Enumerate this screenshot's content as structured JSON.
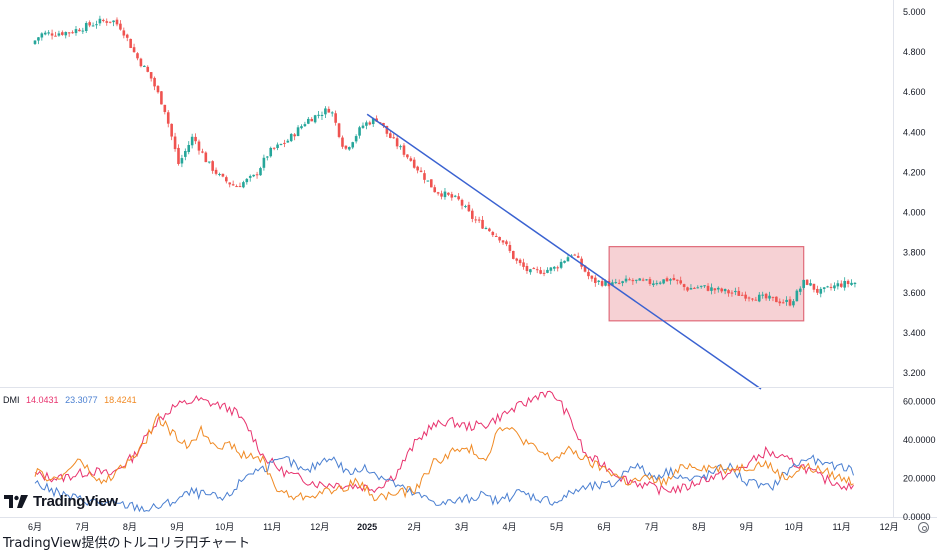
{
  "chart_data": {
    "type": "candlestick",
    "title": "",
    "x_labels": [
      "6月",
      "7月",
      "8月",
      "9月",
      "10月",
      "11月",
      "12月",
      "2025",
      "2月",
      "3月",
      "4月",
      "5月",
      "6月",
      "7月",
      "8月",
      "9月",
      "10月",
      "11月",
      "12月"
    ],
    "y_ticks": [
      "5.000",
      "4.800",
      "4.600",
      "4.400",
      "4.200",
      "4.000",
      "3.800",
      "3.600",
      "3.400",
      "3.200"
    ],
    "ylim": [
      3.13,
      5.06
    ],
    "price_waypoints": [
      [
        0.0,
        4.84
      ],
      [
        0.2,
        4.89
      ],
      [
        0.8,
        4.9
      ],
      [
        1.4,
        4.95
      ],
      [
        1.7,
        4.96
      ],
      [
        1.9,
        4.92
      ],
      [
        2.2,
        4.78
      ],
      [
        2.5,
        4.68
      ],
      [
        2.8,
        4.52
      ],
      [
        3.1,
        4.24
      ],
      [
        3.4,
        4.38
      ],
      [
        3.7,
        4.25
      ],
      [
        4.0,
        4.17
      ],
      [
        4.3,
        4.13
      ],
      [
        4.7,
        4.18
      ],
      [
        5.0,
        4.3
      ],
      [
        5.4,
        4.36
      ],
      [
        5.8,
        4.46
      ],
      [
        6.3,
        4.52
      ],
      [
        6.6,
        4.31
      ],
      [
        7.0,
        4.44
      ],
      [
        7.3,
        4.47
      ],
      [
        7.5,
        4.39
      ],
      [
        8.0,
        4.26
      ],
      [
        8.5,
        4.11
      ],
      [
        9.0,
        4.06
      ],
      [
        9.3,
        3.97
      ],
      [
        9.6,
        3.92
      ],
      [
        9.9,
        3.87
      ],
      [
        10.2,
        3.76
      ],
      [
        10.5,
        3.7
      ],
      [
        11.0,
        3.72
      ],
      [
        11.4,
        3.8
      ],
      [
        11.8,
        3.66
      ],
      [
        12.3,
        3.64
      ],
      [
        12.6,
        3.66
      ],
      [
        13.0,
        3.65
      ],
      [
        13.5,
        3.67
      ],
      [
        13.8,
        3.62
      ],
      [
        14.1,
        3.63
      ],
      [
        14.5,
        3.61
      ],
      [
        15.0,
        3.59
      ],
      [
        15.5,
        3.57
      ],
      [
        16.0,
        3.55
      ],
      [
        16.3,
        3.66
      ],
      [
        16.6,
        3.6
      ],
      [
        17.0,
        3.64
      ],
      [
        17.3,
        3.65
      ]
    ],
    "trendline": {
      "from": [
        7.0,
        4.49
      ],
      "to": [
        15.3,
        3.12
      ],
      "color": "#3a62d1"
    },
    "highlight_box": {
      "x_range": [
        12.1,
        16.2
      ],
      "y_range": [
        3.46,
        3.83
      ],
      "fill": "#f3c1c6",
      "stroke": "#e06b7a"
    },
    "candle_colors": {
      "up": "#26a69a",
      "down": "#ef5350"
    },
    "indicator": {
      "name": "DMI",
      "values": [
        {
          "label": "14.0431",
          "color": "#e8336e"
        },
        {
          "label": "23.3077",
          "color": "#4a7fd1"
        },
        {
          "label": "18.4241",
          "color": "#f08a24"
        }
      ],
      "y_ticks": [
        "60.0000",
        "40.0000",
        "20.0000",
        "0.0000"
      ],
      "ylim": [
        0,
        66
      ],
      "series": [
        {
          "name": "14.0431",
          "color": "#e8336e",
          "waypoints": [
            [
              0,
              22
            ],
            [
              0.5,
              20
            ],
            [
              1.2,
              24
            ],
            [
              1.6,
              22
            ],
            [
              2.1,
              32
            ],
            [
              2.5,
              48
            ],
            [
              2.9,
              57
            ],
            [
              3.4,
              61
            ],
            [
              3.9,
              58
            ],
            [
              4.2,
              55
            ],
            [
              4.5,
              46
            ],
            [
              4.8,
              32
            ],
            [
              5.2,
              24
            ],
            [
              5.6,
              20
            ],
            [
              6.0,
              17
            ],
            [
              6.4,
              17
            ],
            [
              6.8,
              16
            ],
            [
              7.2,
              15
            ],
            [
              7.6,
              22
            ],
            [
              8.0,
              38
            ],
            [
              8.3,
              46
            ],
            [
              8.7,
              50
            ],
            [
              9.1,
              47
            ],
            [
              9.5,
              48
            ],
            [
              10.0,
              55
            ],
            [
              10.4,
              60
            ],
            [
              10.7,
              65
            ],
            [
              11.0,
              62
            ],
            [
              11.3,
              50
            ],
            [
              11.6,
              32
            ],
            [
              12.0,
              27
            ],
            [
              12.4,
              20
            ],
            [
              12.8,
              17
            ],
            [
              13.2,
              14
            ],
            [
              13.7,
              15
            ],
            [
              14.1,
              20
            ],
            [
              14.6,
              22
            ],
            [
              15.0,
              27
            ],
            [
              15.4,
              34
            ],
            [
              15.8,
              30
            ],
            [
              16.2,
              26
            ],
            [
              16.6,
              20
            ],
            [
              17.0,
              17
            ],
            [
              17.3,
              14
            ]
          ]
        },
        {
          "name": "23.3077",
          "color": "#4a7fd1",
          "waypoints": [
            [
              0,
              18
            ],
            [
              0.5,
              12
            ],
            [
              1.0,
              9
            ],
            [
              1.5,
              7
            ],
            [
              2.0,
              6
            ],
            [
              2.4,
              4
            ],
            [
              2.8,
              7
            ],
            [
              3.3,
              13
            ],
            [
              3.7,
              11
            ],
            [
              4.0,
              9
            ],
            [
              4.5,
              23
            ],
            [
              4.9,
              26
            ],
            [
              5.3,
              30
            ],
            [
              5.7,
              23
            ],
            [
              6.2,
              32
            ],
            [
              6.6,
              23
            ],
            [
              7.0,
              25
            ],
            [
              7.4,
              20
            ],
            [
              7.8,
              14
            ],
            [
              8.2,
              10
            ],
            [
              8.6,
              7
            ],
            [
              9.0,
              9
            ],
            [
              9.4,
              11
            ],
            [
              9.8,
              8
            ],
            [
              10.2,
              13
            ],
            [
              10.6,
              10
            ],
            [
              11.0,
              8
            ],
            [
              11.4,
              14
            ],
            [
              11.8,
              16
            ],
            [
              12.2,
              17
            ],
            [
              12.6,
              28
            ],
            [
              13.0,
              21
            ],
            [
              13.4,
              24
            ],
            [
              13.8,
              19
            ],
            [
              14.2,
              22
            ],
            [
              14.6,
              27
            ],
            [
              15.0,
              18
            ],
            [
              15.5,
              15
            ],
            [
              15.9,
              25
            ],
            [
              16.3,
              31
            ],
            [
              16.7,
              26
            ],
            [
              17.0,
              27
            ],
            [
              17.3,
              23
            ]
          ]
        },
        {
          "name": "18.4241",
          "color": "#f08a24",
          "waypoints": [
            [
              0,
              23
            ],
            [
              0.5,
              19
            ],
            [
              0.9,
              30
            ],
            [
              1.4,
              17
            ],
            [
              1.8,
              25
            ],
            [
              2.2,
              34
            ],
            [
              2.6,
              52
            ],
            [
              2.9,
              43
            ],
            [
              3.2,
              37
            ],
            [
              3.5,
              45
            ],
            [
              3.8,
              38
            ],
            [
              4.1,
              37
            ],
            [
              4.4,
              32
            ],
            [
              4.8,
              30
            ],
            [
              5.1,
              14
            ],
            [
              5.5,
              10
            ],
            [
              5.9,
              12
            ],
            [
              6.3,
              14
            ],
            [
              6.8,
              18
            ],
            [
              7.2,
              10
            ],
            [
              7.6,
              12
            ],
            [
              8.0,
              14
            ],
            [
              8.4,
              28
            ],
            [
              8.8,
              34
            ],
            [
              9.2,
              35
            ],
            [
              9.5,
              30
            ],
            [
              9.8,
              48
            ],
            [
              10.1,
              44
            ],
            [
              10.5,
              36
            ],
            [
              10.9,
              30
            ],
            [
              11.3,
              35
            ],
            [
              11.7,
              28
            ],
            [
              12.1,
              24
            ],
            [
              12.5,
              18
            ],
            [
              12.9,
              20
            ],
            [
              13.3,
              18
            ],
            [
              13.7,
              27
            ],
            [
              14.1,
              26
            ],
            [
              14.6,
              25
            ],
            [
              15.0,
              26
            ],
            [
              15.4,
              28
            ],
            [
              15.8,
              20
            ],
            [
              16.2,
              26
            ],
            [
              16.6,
              24
            ],
            [
              17.0,
              20
            ],
            [
              17.3,
              18
            ]
          ]
        }
      ]
    }
  },
  "branding": {
    "logo_text": "TradingView"
  },
  "caption": "TradingView提供のトルコリラ円チャート"
}
